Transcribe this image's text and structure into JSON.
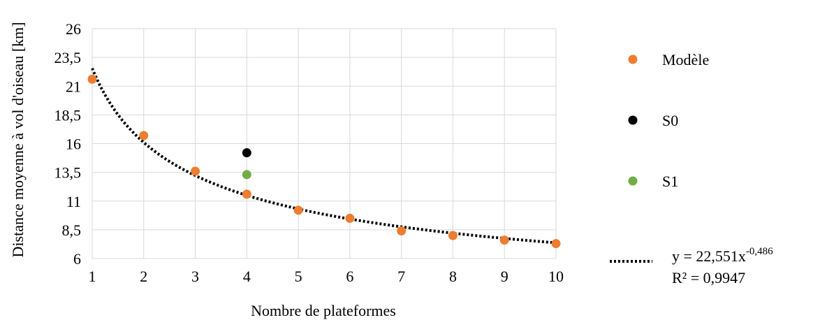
{
  "chart_data": {
    "type": "scatter",
    "xlabel": "Nombre de plateformes",
    "ylabel": "Distance moyenne à vol d'oiseau [km]",
    "xlim": [
      1,
      10
    ],
    "ylim": [
      6,
      26
    ],
    "x_ticks": [
      "1",
      "2",
      "3",
      "4",
      "5",
      "6",
      "7",
      "8",
      "9",
      "10"
    ],
    "y_ticks": [
      "6",
      "8,5",
      "11",
      "13,5",
      "16",
      "18,5",
      "21",
      "23,5",
      "26"
    ],
    "grid": true,
    "legend_position": "right",
    "series": [
      {
        "name": "Modèle",
        "color": "#ED7D31",
        "points": [
          [
            1,
            21.6
          ],
          [
            2,
            16.7
          ],
          [
            3,
            13.6
          ],
          [
            4,
            11.6
          ],
          [
            5,
            10.2
          ],
          [
            6,
            9.5
          ],
          [
            7,
            8.4
          ],
          [
            8,
            8.0
          ],
          [
            9,
            7.6
          ],
          [
            10,
            7.3
          ]
        ]
      },
      {
        "name": "S0",
        "color": "#000000",
        "points": [
          [
            4,
            15.2
          ]
        ]
      },
      {
        "name": "S1",
        "color": "#70AD47",
        "points": [
          [
            4,
            13.3
          ]
        ]
      }
    ],
    "trendline": {
      "type": "power",
      "a": 22.551,
      "b": -0.486,
      "color": "#000000",
      "style": "dotted",
      "equation_prefix": "y = 22,551x",
      "equation_exponent": "-0,486",
      "r_squared_label": "R² = 0,9947"
    }
  }
}
